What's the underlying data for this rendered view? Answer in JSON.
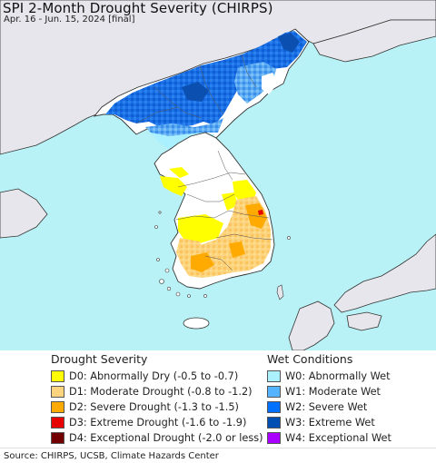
{
  "title": "SPI 2-Month Drought Severity (CHIRPS)",
  "subtitle": "Apr. 16 - Jun. 15, 2024 [final]",
  "colors": {
    "sea": "#b9f2f6",
    "land_outside": "#e8e8ee",
    "land_normal": "#ffffff",
    "D0": "#ffff00",
    "D1": "#fcd37f",
    "D2": "#ffaa00",
    "D3": "#e60000",
    "D4": "#730000",
    "W0": "#aaf0ff",
    "W1": "#54b4ff",
    "W2": "#0070ff",
    "W3": "#0050b4",
    "W4": "#aa00ff"
  },
  "legend": {
    "drought_title": "Drought Severity",
    "wet_title": "Wet Conditions",
    "drought_items": [
      {
        "code": "D0",
        "label": "D0: Abnormally Dry (-0.5 to -0.7)",
        "color": "#ffff00"
      },
      {
        "code": "D1",
        "label": "D1: Moderate Drought (-0.8 to -1.2)",
        "color": "#fcd37f"
      },
      {
        "code": "D2",
        "label": "D2: Severe Drought (-1.3 to -1.5)",
        "color": "#ffaa00"
      },
      {
        "code": "D3",
        "label": "D3: Extreme Drought (-1.6 to -1.9)",
        "color": "#e60000"
      },
      {
        "code": "D4",
        "label": "D4: Exceptional Drought (-2.0 or less)",
        "color": "#730000"
      }
    ],
    "wet_items": [
      {
        "code": "W0",
        "label": "W0: Abnormally Wet",
        "color": "#aaf0ff"
      },
      {
        "code": "W1",
        "label": "W1: Moderate Wet",
        "color": "#54b4ff"
      },
      {
        "code": "W2",
        "label": "W2: Severe Wet",
        "color": "#0070ff"
      },
      {
        "code": "W3",
        "label": "W3: Extreme Wet",
        "color": "#0050b4"
      },
      {
        "code": "W4",
        "label": "W4: Exceptional Wet",
        "color": "#aa00ff"
      }
    ]
  },
  "source": "Source: CHIRPS, UCSB, Climate Hazards Center"
}
